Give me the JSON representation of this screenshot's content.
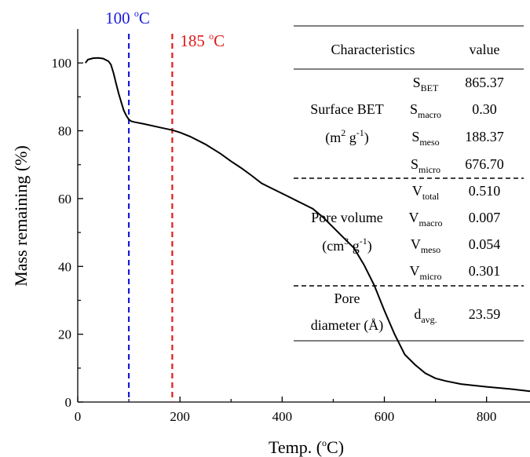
{
  "chart_data": {
    "type": "line",
    "xlabel": {
      "main": "Temp. (",
      "sup": "o",
      "tail": "C)"
    },
    "ylabel": "Mass remaining (%)",
    "xlim": [
      0,
      885
    ],
    "ylim": [
      0,
      110
    ],
    "xticks": [
      0,
      200,
      400,
      600,
      800
    ],
    "yticks": [
      0,
      20,
      40,
      60,
      80,
      100
    ],
    "grid": false,
    "series": [
      {
        "color": "#000000",
        "x": [
          15,
          20,
          25,
          30,
          40,
          50,
          60,
          65,
          70,
          75,
          80,
          85,
          90,
          95,
          100,
          105,
          110,
          130,
          160,
          185,
          200,
          220,
          250,
          280,
          300,
          320,
          340,
          360,
          380,
          400,
          420,
          440,
          460,
          480,
          500,
          520,
          540,
          560,
          580,
          600,
          620,
          640,
          660,
          680,
          700,
          720,
          750,
          800,
          850,
          885
        ],
        "y": [
          100,
          101,
          101.2,
          101.4,
          101.5,
          101.3,
          100.5,
          99.5,
          97,
          94,
          91,
          88.5,
          86,
          84.5,
          83.3,
          82.8,
          82.6,
          82,
          81,
          80.2,
          79.5,
          78.3,
          76,
          73.2,
          71,
          69,
          66.8,
          64.5,
          63,
          61.5,
          60,
          58.5,
          57,
          54.5,
          51.5,
          48.5,
          45.5,
          40.5,
          34.5,
          27,
          20,
          14,
          11,
          8.5,
          7,
          6.2,
          5.3,
          4.5,
          3.8,
          3.2
        ]
      }
    ],
    "vlines": [
      {
        "x": 100,
        "color": "#1a1adb",
        "label": "100",
        "deg": "o",
        "unit": "C"
      },
      {
        "x": 185,
        "color": "#e01a1a",
        "label": "185",
        "deg": "o",
        "unit": "C"
      }
    ]
  },
  "table": {
    "header": {
      "characteristics": "Characteristics",
      "value": "value"
    },
    "groups": [
      {
        "label_line1": "Surface BET",
        "label_line2": {
          "a": "(m",
          "sup1": "2",
          "b": " g",
          "sup2": "-1",
          "c": ")"
        },
        "rows": [
          {
            "sym": "S",
            "sub": "BET",
            "val": "865.37"
          },
          {
            "sym": "S",
            "sub": "macro",
            "val": "0.30"
          },
          {
            "sym": "S",
            "sub": "meso",
            "val": "188.37"
          },
          {
            "sym": "S",
            "sub": "micro",
            "val": "676.70"
          }
        ]
      },
      {
        "label_line1": "Pore volume",
        "label_line2": {
          "a": "(cm",
          "sup1": "3",
          "b": " g",
          "sup2": "-1",
          "c": ")"
        },
        "rows": [
          {
            "sym": "V",
            "sub": "total",
            "val": "0.510"
          },
          {
            "sym": "V",
            "sub": "macro",
            "val": "0.007"
          },
          {
            "sym": "V",
            "sub": "meso",
            "val": "0.054"
          },
          {
            "sym": "V",
            "sub": "micro",
            "val": "0.301"
          }
        ]
      },
      {
        "label_line1": "Pore",
        "label_line2": {
          "a": "diameter (Å)"
        },
        "rows": [
          {
            "sym": "d",
            "sub": "avg.",
            "val": "23.59"
          }
        ]
      }
    ]
  }
}
